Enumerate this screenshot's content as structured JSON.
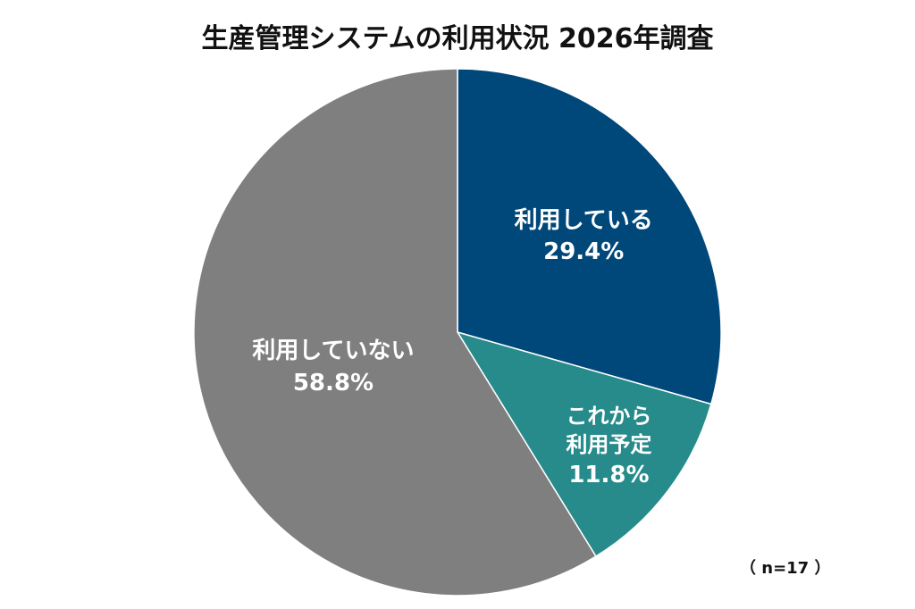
{
  "chart_data": {
    "type": "pie",
    "title": "生産管理システムの利用状況 2026年調査",
    "categories": [
      "利用している",
      "これから利用予定",
      "利用していない"
    ],
    "values": [
      29.4,
      11.8,
      58.8
    ],
    "value_labels": [
      "29.4%",
      "11.8%",
      "58.8%"
    ],
    "colors": [
      "#00477a",
      "#268b8a",
      "#7f7f7f"
    ],
    "note": "（ n=17 ）"
  }
}
